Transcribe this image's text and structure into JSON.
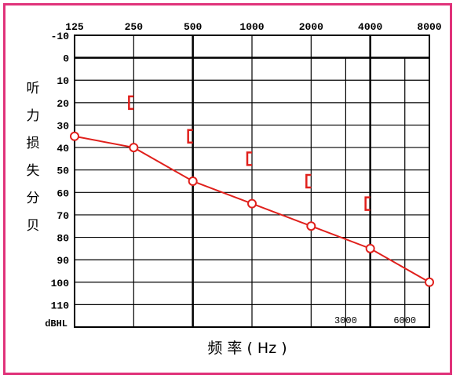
{
  "chart_data": {
    "type": "line",
    "x_tick_labels": [
      "125",
      "250",
      "500",
      "1000",
      "2000",
      "4000",
      "8000"
    ],
    "x_inner_labels": [
      "3000",
      "6000"
    ],
    "y_tick_labels": [
      "-10",
      "0",
      "10",
      "20",
      "30",
      "40",
      "50",
      "60",
      "70",
      "80",
      "90",
      "100",
      "110"
    ],
    "y_unit_label": "dBHL",
    "ylabel_chars": [
      "听",
      "力",
      "损",
      "失",
      "分",
      "贝"
    ],
    "xlabel": "频 率 ( Hz )",
    "ylim": [
      -10,
      120
    ],
    "x_scale": "log2",
    "series": [
      {
        "marker": "circle",
        "color": "#e0201c",
        "points": [
          {
            "x": 125,
            "y": 35
          },
          {
            "x": 250,
            "y": 40
          },
          {
            "x": 500,
            "y": 55
          },
          {
            "x": 1000,
            "y": 65
          },
          {
            "x": 2000,
            "y": 75
          },
          {
            "x": 4000,
            "y": 85
          },
          {
            "x": 8000,
            "y": 100
          }
        ]
      },
      {
        "marker": "bracket",
        "color": "#e0201c",
        "points": [
          {
            "x": 250,
            "y": 20
          },
          {
            "x": 500,
            "y": 35
          },
          {
            "x": 1000,
            "y": 45
          },
          {
            "x": 2000,
            "y": 55
          },
          {
            "x": 4000,
            "y": 65
          }
        ]
      }
    ]
  }
}
